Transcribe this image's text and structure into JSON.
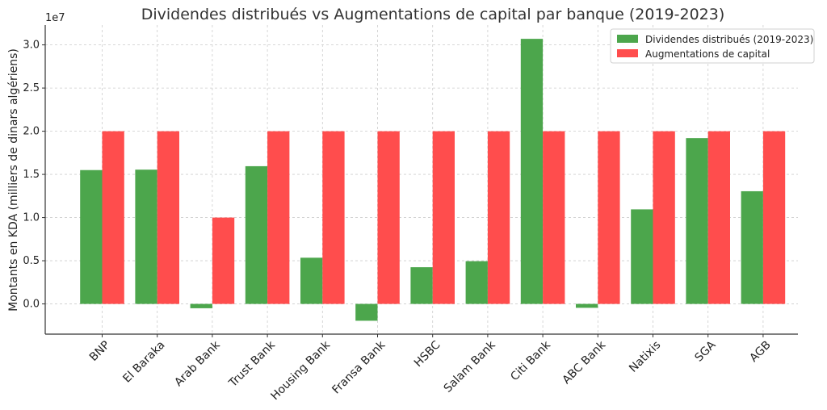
{
  "chart_data": {
    "type": "bar",
    "title": "Dividendes distribués vs Augmentations de capital par banque (2019-2023)",
    "xlabel": "",
    "ylabel": "Montants en KDA (milliers de dinars algériens)",
    "y_offset_label": "1e7",
    "categories": [
      "BNP",
      "El Baraka",
      "Arab Bank",
      "Trust Bank",
      "Housing Bank",
      "Fransa Bank",
      "HSBC",
      "Salam Bank",
      "Citi Bank",
      "ABC Bank",
      "Natixis",
      "SGA",
      "AGB"
    ],
    "series": [
      {
        "name": "Dividendes distribués (2019-2023)",
        "color": "#4ca64c",
        "values": [
          15500000,
          15550000,
          -500000,
          15950000,
          5350000,
          -1950000,
          4250000,
          4950000,
          30700000,
          -450000,
          10950000,
          19200000,
          13050000
        ]
      },
      {
        "name": "Augmentations de capital",
        "color": "#ff4d4d",
        "values": [
          20000000,
          20000000,
          10000000,
          20000000,
          20000000,
          20000000,
          20000000,
          20000000,
          20000000,
          20000000,
          20000000,
          20000000,
          20000000
        ]
      }
    ],
    "yticks": [
      0,
      5000000,
      10000000,
      15000000,
      20000000,
      25000000,
      30000000
    ],
    "ytick_labels": [
      "0.0",
      "0.5",
      "1.0",
      "1.5",
      "2.0",
      "2.5",
      "3.0"
    ],
    "ylim": [
      -3500000,
      32300000
    ],
    "grid": true,
    "legend_position": "top-right"
  }
}
